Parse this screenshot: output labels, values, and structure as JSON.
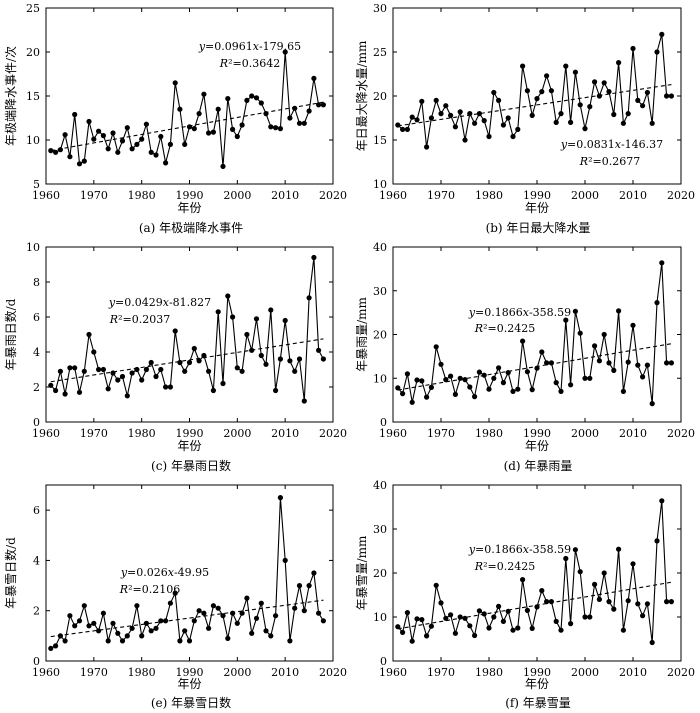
{
  "chart_data": [
    {
      "type": "line",
      "caption": "(a) 年极端降水事件",
      "xlabel": "年份",
      "ylabel": "年极端降水事件/次",
      "xlim": [
        1960,
        2020
      ],
      "ylim": [
        5,
        25
      ],
      "xticks": [
        1960,
        1970,
        1980,
        1990,
        2000,
        2010,
        2020
      ],
      "yticks": [
        5,
        10,
        15,
        20,
        25
      ],
      "equation": "y=0.0961x-179.65",
      "r2": "R²=0.3642",
      "trend": [
        {
          "x": 1961,
          "y": 8.8
        },
        {
          "x": 2018,
          "y": 14.3
        }
      ],
      "series": [
        {
          "x": [
            1961,
            1962,
            1963,
            1964,
            1965,
            1966,
            1967,
            1968,
            1969,
            1970,
            1971,
            1972,
            1973,
            1974,
            1975,
            1976,
            1977,
            1978,
            1979,
            1980,
            1981,
            1982,
            1983,
            1984,
            1985,
            1986,
            1987,
            1988,
            1989,
            1990,
            1991,
            1992,
            1993,
            1994,
            1995,
            1996,
            1997,
            1998,
            1999,
            2000,
            2001,
            2002,
            2003,
            2004,
            2005,
            2006,
            2007,
            2008,
            2009,
            2010,
            2011,
            2012,
            2013,
            2014,
            2015,
            2016,
            2017,
            2018
          ],
          "values": [
            8.8,
            8.6,
            8.9,
            10.6,
            8.1,
            12.9,
            7.3,
            7.6,
            12.1,
            10.1,
            11.0,
            10.5,
            9.0,
            10.8,
            8.6,
            9.9,
            11.4,
            9.0,
            9.5,
            10.1,
            11.8,
            8.6,
            8.3,
            10.4,
            7.4,
            9.5,
            16.5,
            13.5,
            9.5,
            11.5,
            11.3,
            13.0,
            15.2,
            10.8,
            10.9,
            13.5,
            7.0,
            14.7,
            11.2,
            10.4,
            11.7,
            14.5,
            15.0,
            14.8,
            14.2,
            13.0,
            11.5,
            11.4,
            11.3,
            20.0,
            12.5,
            13.6,
            11.9,
            11.9,
            13.3,
            17.0,
            14.0,
            14.0
          ]
        }
      ]
    },
    {
      "type": "line",
      "caption": "(b) 年日最大降水量",
      "xlabel": "年份",
      "ylabel": "年日最大降水量/mm",
      "xlim": [
        1960,
        2020
      ],
      "ylim": [
        10,
        30
      ],
      "xticks": [
        1960,
        1970,
        1980,
        1990,
        2000,
        2010,
        2020
      ],
      "yticks": [
        10,
        15,
        20,
        25,
        30
      ],
      "equation": "y=0.0831x-146.37",
      "r2": "R²=0.2677",
      "trend": [
        {
          "x": 1961,
          "y": 16.6
        },
        {
          "x": 2018,
          "y": 21.3
        }
      ],
      "series": [
        {
          "x": [
            1961,
            1962,
            1963,
            1964,
            1965,
            1966,
            1967,
            1968,
            1969,
            1970,
            1971,
            1972,
            1973,
            1974,
            1975,
            1976,
            1977,
            1978,
            1979,
            1980,
            1981,
            1982,
            1983,
            1984,
            1985,
            1986,
            1987,
            1988,
            1989,
            1990,
            1991,
            1992,
            1993,
            1994,
            1995,
            1996,
            1997,
            1998,
            1999,
            2000,
            2001,
            2002,
            2003,
            2004,
            2005,
            2006,
            2007,
            2008,
            2009,
            2010,
            2011,
            2012,
            2013,
            2014,
            2015,
            2016,
            2017,
            2018
          ],
          "values": [
            16.7,
            16.2,
            16.2,
            17.6,
            17.3,
            19.4,
            14.2,
            17.5,
            19.5,
            18.0,
            18.9,
            17.8,
            16.5,
            18.2,
            15.0,
            18.0,
            16.9,
            18.0,
            17.2,
            15.4,
            20.4,
            19.5,
            16.7,
            17.5,
            15.4,
            16.2,
            23.4,
            20.6,
            17.8,
            19.7,
            20.5,
            22.3,
            20.6,
            17.0,
            18.0,
            23.4,
            17.0,
            22.7,
            19.0,
            16.3,
            18.8,
            21.6,
            20.0,
            21.5,
            20.5,
            17.9,
            23.8,
            16.9,
            18.0,
            25.4,
            19.5,
            18.9,
            20.4,
            16.9,
            25.0,
            27.0,
            20.0,
            20.0
          ]
        }
      ]
    },
    {
      "type": "line",
      "caption": "(c) 年暴雨日数",
      "xlabel": "年份",
      "ylabel": "年暴雨日数/d",
      "xlim": [
        1960,
        2020
      ],
      "ylim": [
        0,
        10
      ],
      "xticks": [
        1960,
        1970,
        1980,
        1990,
        2000,
        2010,
        2020
      ],
      "yticks": [
        0,
        2,
        4,
        6,
        8,
        10
      ],
      "equation": "y=0.0429x-81.827",
      "r2": "R²=0.2037",
      "trend": [
        {
          "x": 1961,
          "y": 2.3
        },
        {
          "x": 2018,
          "y": 4.75
        }
      ],
      "series": [
        {
          "x": [
            1961,
            1962,
            1963,
            1964,
            1965,
            1966,
            1967,
            1968,
            1969,
            1970,
            1971,
            1972,
            1973,
            1974,
            1975,
            1976,
            1977,
            1978,
            1979,
            1980,
            1981,
            1982,
            1983,
            1984,
            1985,
            1986,
            1987,
            1988,
            1989,
            1990,
            1991,
            1992,
            1993,
            1994,
            1995,
            1996,
            1997,
            1998,
            1999,
            2000,
            2001,
            2002,
            2003,
            2004,
            2005,
            2006,
            2007,
            2008,
            2009,
            2010,
            2011,
            2012,
            2013,
            2014,
            2015,
            2016,
            2017,
            2018
          ],
          "values": [
            2.1,
            1.8,
            2.9,
            1.6,
            3.1,
            3.1,
            1.7,
            2.9,
            5.0,
            4.0,
            3.0,
            3.0,
            1.9,
            2.8,
            2.4,
            2.6,
            1.5,
            2.8,
            3.0,
            2.4,
            3.0,
            3.4,
            2.6,
            3.0,
            2.0,
            2.0,
            5.2,
            3.4,
            2.9,
            3.4,
            4.2,
            3.5,
            3.8,
            2.9,
            1.8,
            6.3,
            2.2,
            7.2,
            6.0,
            3.1,
            2.9,
            5.0,
            4.1,
            5.9,
            3.8,
            3.3,
            6.4,
            1.8,
            3.6,
            5.8,
            3.5,
            2.9,
            3.6,
            1.2,
            7.1,
            9.4,
            4.1,
            3.6
          ]
        }
      ]
    },
    {
      "type": "line",
      "caption": "(d) 年暴雨量",
      "xlabel": "年份",
      "ylabel": "年暴雨量/mm",
      "xlim": [
        1960,
        2020
      ],
      "ylim": [
        0,
        40
      ],
      "xticks": [
        1960,
        1970,
        1980,
        1990,
        2000,
        2010,
        2020
      ],
      "yticks": [
        0,
        10,
        20,
        30,
        40
      ],
      "equation": "y=0.1866x-358.59",
      "r2": "R²=0.2425",
      "trend": [
        {
          "x": 1961,
          "y": 7.3
        },
        {
          "x": 2018,
          "y": 17.9
        }
      ],
      "series": [
        {
          "x": [
            1961,
            1962,
            1963,
            1964,
            1965,
            1966,
            1967,
            1968,
            1969,
            1970,
            1971,
            1972,
            1973,
            1974,
            1975,
            1976,
            1977,
            1978,
            1979,
            1980,
            1981,
            1982,
            1983,
            1984,
            1985,
            1986,
            1987,
            1988,
            1989,
            1990,
            1991,
            1992,
            1993,
            1994,
            1995,
            1996,
            1997,
            1998,
            1999,
            2000,
            2001,
            2002,
            2003,
            2004,
            2005,
            2006,
            2007,
            2008,
            2009,
            2010,
            2011,
            2012,
            2013,
            2014,
            2015,
            2016,
            2017,
            2018
          ],
          "values": [
            7.8,
            6.5,
            11.0,
            4.5,
            9.6,
            9.4,
            5.7,
            7.9,
            17.2,
            13.2,
            9.7,
            10.5,
            6.3,
            10.0,
            9.7,
            8.0,
            5.8,
            11.4,
            10.7,
            7.5,
            10.0,
            12.4,
            9.0,
            11.3,
            7.0,
            7.5,
            18.5,
            11.5,
            7.4,
            12.3,
            16.0,
            13.5,
            13.5,
            9.0,
            7.0,
            23.3,
            8.5,
            25.3,
            20.3,
            10.0,
            10.0,
            17.4,
            14.0,
            20.0,
            13.5,
            11.8,
            25.4,
            7.0,
            13.7,
            22.1,
            13.0,
            10.3,
            13.0,
            4.2,
            27.3,
            36.4,
            13.5,
            13.5
          ]
        }
      ]
    },
    {
      "type": "line",
      "caption": "(e) 年暴雪日数",
      "xlabel": "年份",
      "ylabel": "年暴雪日数/d",
      "xlim": [
        1960,
        2020
      ],
      "ylim": [
        0,
        7
      ],
      "xticks": [
        1960,
        1970,
        1980,
        1990,
        2000,
        2010,
        2020
      ],
      "yticks": [
        0,
        2,
        4,
        6
      ],
      "equation": "y=0.026x-49.95",
      "r2": "R²=0.2106",
      "trend": [
        {
          "x": 1961,
          "y": 0.97
        },
        {
          "x": 2018,
          "y": 2.42
        }
      ],
      "series": [
        {
          "x": [
            1961,
            1962,
            1963,
            1964,
            1965,
            1966,
            1967,
            1968,
            1969,
            1970,
            1971,
            1972,
            1973,
            1974,
            1975,
            1976,
            1977,
            1978,
            1979,
            1980,
            1981,
            1982,
            1983,
            1984,
            1985,
            1986,
            1987,
            1988,
            1989,
            1990,
            1991,
            1992,
            1993,
            1994,
            1995,
            1996,
            1997,
            1998,
            1999,
            2000,
            2001,
            2002,
            2003,
            2004,
            2005,
            2006,
            2007,
            2008,
            2009,
            2010,
            2011,
            2012,
            2013,
            2014,
            2015,
            2016,
            2017,
            2018
          ],
          "values": [
            0.5,
            0.6,
            1.0,
            0.8,
            1.8,
            1.4,
            1.6,
            2.2,
            1.4,
            1.5,
            1.2,
            1.9,
            0.8,
            1.5,
            1.1,
            0.8,
            1.0,
            1.3,
            2.2,
            1.0,
            1.5,
            1.2,
            1.3,
            1.6,
            1.6,
            2.3,
            2.7,
            0.8,
            1.2,
            0.8,
            1.6,
            2.0,
            1.9,
            1.3,
            2.2,
            2.1,
            1.8,
            0.9,
            1.9,
            1.5,
            1.9,
            2.5,
            1.1,
            1.7,
            2.3,
            1.2,
            1.0,
            1.8,
            6.5,
            4.0,
            0.8,
            2.1,
            3.0,
            2.0,
            3.0,
            3.5,
            1.9,
            1.6
          ]
        }
      ]
    },
    {
      "type": "line",
      "caption": "(f) 年暴雪量",
      "xlabel": "年份",
      "ylabel": "年暴雪量/mm",
      "xlim": [
        1960,
        2020
      ],
      "ylim": [
        0,
        40
      ],
      "xticks": [
        1960,
        1970,
        1980,
        1990,
        2000,
        2010,
        2020
      ],
      "yticks": [
        0,
        10,
        20,
        30,
        40
      ],
      "equation": "y=0.1866x-358.59",
      "r2": "R²=0.2425",
      "trend": [
        {
          "x": 1961,
          "y": 7.3
        },
        {
          "x": 2018,
          "y": 17.9
        }
      ],
      "series": [
        {
          "x": [
            1961,
            1962,
            1963,
            1964,
            1965,
            1966,
            1967,
            1968,
            1969,
            1970,
            1971,
            1972,
            1973,
            1974,
            1975,
            1976,
            1977,
            1978,
            1979,
            1980,
            1981,
            1982,
            1983,
            1984,
            1985,
            1986,
            1987,
            1988,
            1989,
            1990,
            1991,
            1992,
            1993,
            1994,
            1995,
            1996,
            1997,
            1998,
            1999,
            2000,
            2001,
            2002,
            2003,
            2004,
            2005,
            2006,
            2007,
            2008,
            2009,
            2010,
            2011,
            2012,
            2013,
            2014,
            2015,
            2016,
            2017,
            2018
          ],
          "values": [
            7.8,
            6.5,
            11.0,
            4.5,
            9.6,
            9.4,
            5.7,
            7.9,
            17.2,
            13.2,
            9.7,
            10.5,
            6.3,
            10.0,
            9.7,
            8.0,
            5.8,
            11.4,
            10.7,
            7.5,
            10.0,
            12.4,
            9.0,
            11.3,
            7.0,
            7.5,
            18.5,
            11.5,
            7.4,
            12.3,
            16.0,
            13.5,
            13.5,
            9.0,
            7.0,
            23.3,
            8.5,
            25.3,
            20.3,
            10.0,
            10.0,
            17.4,
            14.0,
            20.0,
            13.5,
            11.8,
            25.4,
            7.0,
            13.7,
            22.1,
            13.0,
            10.3,
            13.0,
            4.2,
            27.3,
            36.4,
            13.5,
            13.5
          ]
        }
      ]
    }
  ]
}
